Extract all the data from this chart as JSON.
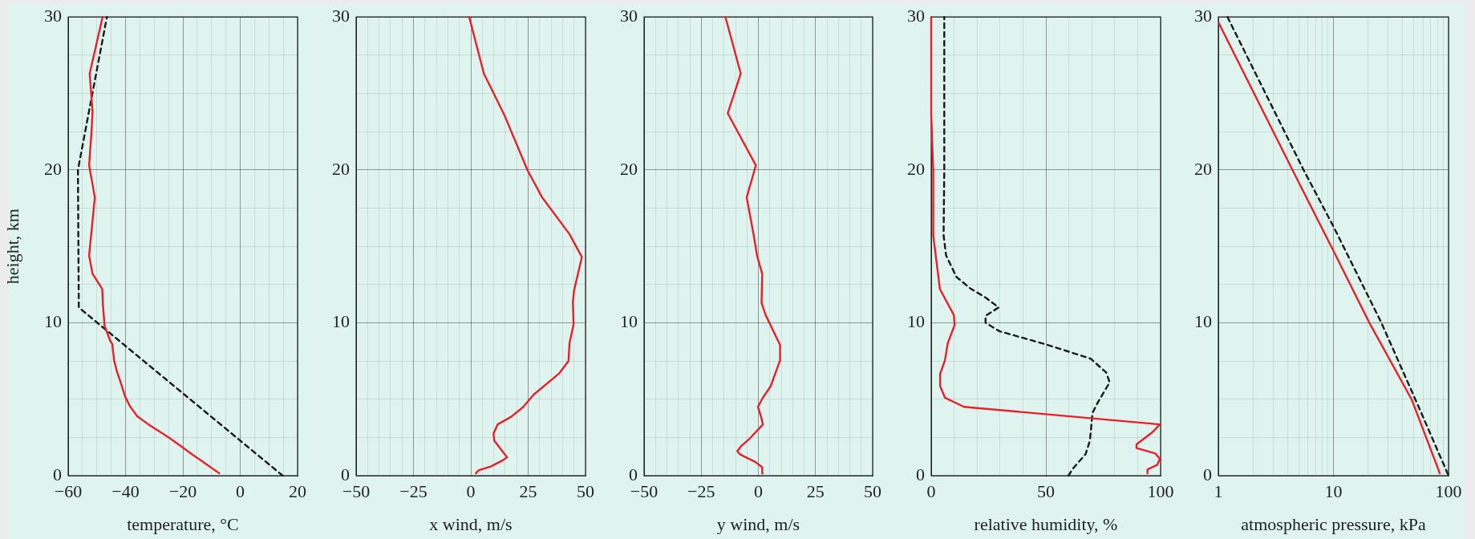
{
  "chart_data": [
    {
      "type": "line",
      "xlabel": "temperature, °C",
      "ylabel": "height, km",
      "xlim": [
        -60,
        20
      ],
      "xticks": [
        {
          "value": -60,
          "label": "−60"
        },
        {
          "value": -55,
          "label": null
        },
        {
          "value": -50,
          "label": null
        },
        {
          "value": -45,
          "label": null
        },
        {
          "value": -40,
          "label": "−40"
        },
        {
          "value": -35,
          "label": null
        },
        {
          "value": -30,
          "label": null
        },
        {
          "value": -25,
          "label": null
        },
        {
          "value": -20,
          "label": "−20"
        },
        {
          "value": -15,
          "label": null
        },
        {
          "value": -10,
          "label": null
        },
        {
          "value": -5,
          "label": null
        },
        0,
        {
          "value": 5,
          "label": null
        },
        {
          "value": 10,
          "label": null
        },
        {
          "value": 15,
          "label": null
        },
        20
      ],
      "ylim": [
        0,
        30
      ],
      "yticks": [
        0,
        {
          "value": 2.5,
          "label": null
        },
        {
          "value": 5,
          "label": null
        },
        {
          "value": 7.5,
          "label": null
        },
        10,
        {
          "value": 12.5,
          "label": null
        },
        {
          "value": 15,
          "label": null
        },
        {
          "value": 17.5,
          "label": null
        },
        20,
        {
          "value": 22.5,
          "label": null
        },
        {
          "value": 25,
          "label": null
        },
        {
          "value": 27.5,
          "label": null
        },
        30
      ],
      "grid": true,
      "marker": "none",
      "series": [
        {
          "color": "#e8202a",
          "line_style": "solid",
          "x": [
            -7.3,
            -13,
            -16.5,
            -20.5,
            -25,
            -32,
            -36,
            -38.5,
            -40.2,
            -41.7,
            -42.9,
            -44,
            -44.6,
            -45.3,
            -47.3,
            -47.9,
            -48.1,
            -51.5,
            -52.7,
            -50.7,
            -52.7,
            -51.9,
            -51.5,
            -52.5,
            -48
          ],
          "values": [
            0.15,
            0.9,
            1.35,
            1.9,
            2.5,
            3.35,
            3.9,
            4.55,
            5.2,
            6.1,
            6.75,
            7.55,
            8.6,
            8.8,
            9.8,
            11.2,
            12.2,
            13.2,
            14.4,
            18.2,
            20.3,
            22.4,
            23.8,
            26.3,
            30
          ]
        },
        {
          "color": "#1a1a1a",
          "line_style": "dashed",
          "x": [
            14.8,
            -56.3,
            -56.6,
            -46.5
          ],
          "values": [
            0,
            11,
            20,
            30
          ]
        }
      ]
    },
    {
      "type": "line",
      "xlabel": "x wind, m/s",
      "xlim": [
        -50,
        50
      ],
      "xticks": [
        {
          "value": -50,
          "label": "−50"
        },
        {
          "value": -45,
          "label": null
        },
        {
          "value": -40,
          "label": null
        },
        {
          "value": -35,
          "label": null
        },
        {
          "value": -30,
          "label": null
        },
        {
          "value": -25,
          "label": "−25"
        },
        {
          "value": -20,
          "label": null
        },
        {
          "value": -15,
          "label": null
        },
        {
          "value": -10,
          "label": null
        },
        {
          "value": -5,
          "label": null
        },
        0,
        {
          "value": 5,
          "label": null
        },
        {
          "value": 10,
          "label": null
        },
        {
          "value": 15,
          "label": null
        },
        {
          "value": 20,
          "label": null
        },
        25,
        {
          "value": 30,
          "label": null
        },
        {
          "value": 35,
          "label": null
        },
        {
          "value": 40,
          "label": null
        },
        {
          "value": 45,
          "label": null
        },
        50
      ],
      "ylim": [
        0,
        30
      ],
      "yticks": [
        0,
        {
          "value": 2.5,
          "label": null
        },
        {
          "value": 5,
          "label": null
        },
        {
          "value": 7.5,
          "label": null
        },
        10,
        {
          "value": 12.5,
          "label": null
        },
        {
          "value": 15,
          "label": null
        },
        {
          "value": 17.5,
          "label": null
        },
        20,
        {
          "value": 22.5,
          "label": null
        },
        {
          "value": 25,
          "label": null
        },
        {
          "value": 27.5,
          "label": null
        },
        30
      ],
      "grid": true,
      "marker": "none",
      "series": [
        {
          "color": "#e8202a",
          "line_style": "solid",
          "x": [
            2.2,
            3.4,
            8.7,
            13.9,
            15.8,
            13.2,
            10.2,
            9.9,
            11.7,
            17.6,
            22.9,
            27.4,
            38.6,
            42.6,
            43,
            44.8,
            44.5,
            45,
            48.4,
            43,
            31.1,
            24.8,
            14.6,
            5.7,
            -0.7
          ],
          "values": [
            0.15,
            0.35,
            0.6,
            1,
            1.2,
            1.7,
            2.3,
            2.75,
            3.35,
            3.85,
            4.5,
            5.3,
            6.7,
            7.5,
            8.65,
            9.9,
            11.35,
            12.1,
            14.3,
            15.8,
            18.2,
            19.95,
            23.6,
            26.3,
            30
          ]
        }
      ]
    },
    {
      "type": "line",
      "xlabel": "y wind, m/s",
      "xlim": [
        -50,
        50
      ],
      "xticks": [
        {
          "value": -50,
          "label": "−50"
        },
        {
          "value": -45,
          "label": null
        },
        {
          "value": -40,
          "label": null
        },
        {
          "value": -35,
          "label": null
        },
        {
          "value": -30,
          "label": null
        },
        {
          "value": -25,
          "label": "−25"
        },
        {
          "value": -20,
          "label": null
        },
        {
          "value": -15,
          "label": null
        },
        {
          "value": -10,
          "label": null
        },
        {
          "value": -5,
          "label": null
        },
        0,
        {
          "value": 5,
          "label": null
        },
        {
          "value": 10,
          "label": null
        },
        {
          "value": 15,
          "label": null
        },
        {
          "value": 20,
          "label": null
        },
        25,
        {
          "value": 30,
          "label": null
        },
        {
          "value": 35,
          "label": null
        },
        {
          "value": 40,
          "label": null
        },
        {
          "value": 45,
          "label": null
        },
        50
      ],
      "ylim": [
        0,
        30
      ],
      "yticks": [
        0,
        {
          "value": 2.5,
          "label": null
        },
        {
          "value": 5,
          "label": null
        },
        {
          "value": 7.5,
          "label": null
        },
        10,
        {
          "value": 12.5,
          "label": null
        },
        {
          "value": 15,
          "label": null
        },
        {
          "value": 17.5,
          "label": null
        },
        20,
        {
          "value": 22.5,
          "label": null
        },
        {
          "value": 25,
          "label": null
        },
        {
          "value": 27.5,
          "label": null
        },
        30
      ],
      "grid": true,
      "marker": "none",
      "series": [
        {
          "color": "#e8202a",
          "line_style": "solid",
          "x": [
            1.9,
            1.7,
            -1.4,
            -8.1,
            -9.2,
            -7.4,
            -3.6,
            2,
            1.2,
            -0.2,
            2,
            5.4,
            9.5,
            9.5,
            3.2,
            1.4,
            1.7,
            -0.6,
            -2,
            -5.1,
            -1.1,
            -13.4,
            -7.7,
            -14.4
          ],
          "values": [
            0.15,
            0.55,
            0.9,
            1.4,
            1.6,
            1.95,
            2.45,
            3.35,
            3.85,
            4.5,
            5.1,
            5.85,
            7.55,
            8.55,
            10.5,
            11.3,
            13.2,
            14.4,
            15.7,
            18.2,
            20.3,
            23.7,
            26.3,
            30
          ]
        }
      ]
    },
    {
      "type": "line",
      "xlabel": "relative humidity, %",
      "xlim": [
        0,
        100
      ],
      "xticks": [
        0,
        {
          "value": 10,
          "label": null
        },
        {
          "value": 20,
          "label": null
        },
        {
          "value": 30,
          "label": null
        },
        {
          "value": 40,
          "label": null
        },
        50,
        {
          "value": 60,
          "label": null
        },
        {
          "value": 70,
          "label": null
        },
        {
          "value": 80,
          "label": null
        },
        {
          "value": 90,
          "label": null
        },
        100
      ],
      "ylim": [
        0,
        30
      ],
      "yticks": [
        0,
        {
          "value": 2.5,
          "label": null
        },
        {
          "value": 5,
          "label": null
        },
        {
          "value": 7.5,
          "label": null
        },
        10,
        {
          "value": 12.5,
          "label": null
        },
        {
          "value": 15,
          "label": null
        },
        {
          "value": 17.5,
          "label": null
        },
        20,
        {
          "value": 22.5,
          "label": null
        },
        {
          "value": 25,
          "label": null
        },
        {
          "value": 27.5,
          "label": null
        },
        30
      ],
      "grid": true,
      "marker": "none",
      "series": [
        {
          "color": "#e8202a",
          "line_style": "solid",
          "x": [
            94.3,
            94.3,
            98.5,
            99.7,
            97.7,
            89.5,
            89.5,
            96.5,
            99.7,
            14.3,
            6,
            3.9,
            3.9,
            6,
            7.2,
            10.2,
            9.9,
            3.8,
            0.9,
            0.9,
            0,
            0
          ],
          "values": [
            0.15,
            0.4,
            0.7,
            1.1,
            1.45,
            1.8,
            2.05,
            2.85,
            3.35,
            4.5,
            5.1,
            5.85,
            6.65,
            7.55,
            8.65,
            9.85,
            10.5,
            12.2,
            15.7,
            20,
            23.6,
            30
          ]
        },
        {
          "color": "#1a1a1a",
          "line_style": "dashed",
          "x": [
            59.8,
            62,
            67.3,
            69.2,
            70.3,
            72.5,
            77.8,
            76.3,
            69.5,
            50.8,
            29.7,
            23.7,
            23.7,
            29.4,
            23.7,
            17,
            11,
            6.5,
            5.4,
            5.7,
            5.7
          ],
          "values": [
            0,
            0.5,
            1.4,
            2.3,
            4.1,
            4.75,
            6.1,
            6.75,
            7.65,
            8.55,
            9.45,
            10,
            10.45,
            11,
            11.65,
            12.25,
            13,
            14.4,
            15.7,
            20,
            30
          ]
        }
      ]
    },
    {
      "type": "line",
      "xlabel": "atmospheric pressure, kPa",
      "log": "x",
      "xlim": [
        1,
        100
      ],
      "xticks": [
        1,
        {
          "value": 2,
          "label": null
        },
        {
          "value": 3,
          "label": null
        },
        {
          "value": 4,
          "label": null
        },
        {
          "value": 5,
          "label": null
        },
        {
          "value": 6,
          "label": null
        },
        {
          "value": 7,
          "label": null
        },
        {
          "value": 8,
          "label": null
        },
        {
          "value": 9,
          "label": null
        },
        10,
        {
          "value": 20,
          "label": null
        },
        {
          "value": 30,
          "label": null
        },
        {
          "value": 40,
          "label": null
        },
        {
          "value": 50,
          "label": null
        },
        {
          "value": 60,
          "label": null
        },
        {
          "value": 70,
          "label": null
        },
        {
          "value": 80,
          "label": null
        },
        {
          "value": 90,
          "label": null
        },
        100
      ],
      "ylim": [
        0,
        30
      ],
      "yticks": [
        0,
        {
          "value": 2.5,
          "label": null
        },
        {
          "value": 5,
          "label": null
        },
        {
          "value": 7.5,
          "label": null
        },
        10,
        {
          "value": 12.5,
          "label": null
        },
        {
          "value": 15,
          "label": null
        },
        {
          "value": 17.5,
          "label": null
        },
        20,
        {
          "value": 22.5,
          "label": null
        },
        {
          "value": 25,
          "label": null
        },
        {
          "value": 27.5,
          "label": null
        },
        30
      ],
      "grid": true,
      "marker": "none",
      "series": [
        {
          "color": "#e8202a",
          "line_style": "solid",
          "x": [
            1.01,
            4.4,
            10,
            20.5,
            47.9,
            84
          ],
          "values": [
            29.6,
            20,
            14.7,
            10,
            4.97,
            0.15
          ]
        },
        {
          "color": "#1a1a1a",
          "line_style": "dashed",
          "x": [
            1.2,
            5.5,
            10,
            26.1,
            55,
            100
          ],
          "values": [
            30,
            20,
            16.3,
            10,
            4.5,
            0
          ]
        }
      ]
    }
  ]
}
